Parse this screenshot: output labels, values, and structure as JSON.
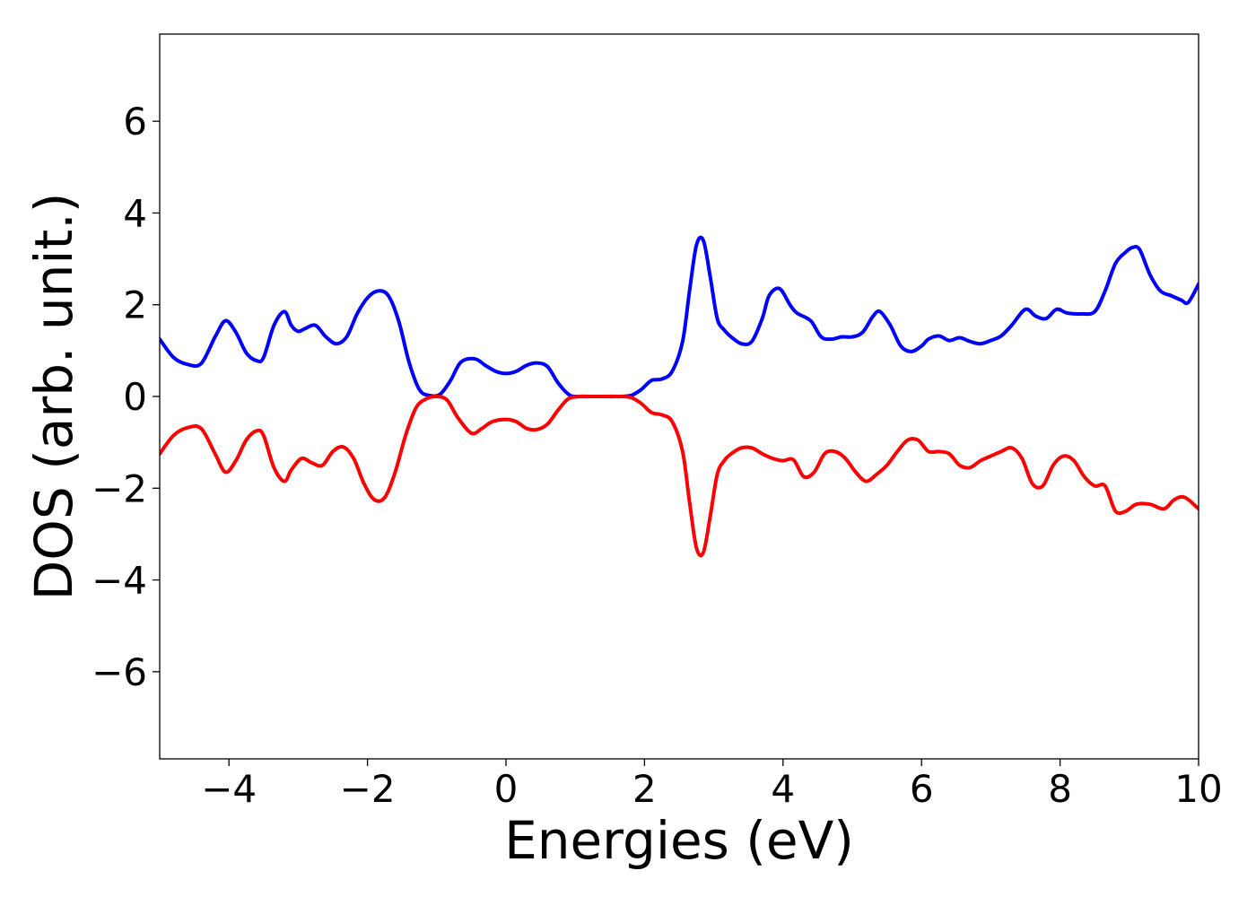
{
  "chart_data": {
    "type": "line",
    "xlabel": "Energies (eV)",
    "ylabel": "DOS (arb. unit.)",
    "xlim": [
      -5,
      10
    ],
    "ylim": [
      -7.9,
      7.9
    ],
    "xticks": [
      -4,
      -2,
      0,
      2,
      4,
      6,
      8,
      10
    ],
    "yticks": [
      -6,
      -4,
      -2,
      0,
      2,
      4,
      6
    ],
    "xtick_labels": [
      "−4",
      "−2",
      "0",
      "2",
      "4",
      "6",
      "8",
      "10"
    ],
    "ytick_labels": [
      "−6",
      "−4",
      "−2",
      "0",
      "2",
      "4",
      "6"
    ],
    "grid": false,
    "colors": {
      "up": "#0000ff",
      "down": "#ff0000",
      "axes": "#000000",
      "background": "#ffffff"
    },
    "series": [
      {
        "color": "#0000ff",
        "x": [
          -5.0,
          -4.8,
          -4.6,
          -4.4,
          -4.2,
          -4.05,
          -3.9,
          -3.75,
          -3.6,
          -3.5,
          -3.35,
          -3.2,
          -3.1,
          -3.0,
          -2.9,
          -2.75,
          -2.6,
          -2.45,
          -2.3,
          -2.15,
          -2.0,
          -1.85,
          -1.7,
          -1.55,
          -1.4,
          -1.25,
          -1.1,
          -0.95,
          -0.8,
          -0.65,
          -0.45,
          -0.3,
          -0.15,
          0.0,
          0.15,
          0.3,
          0.45,
          0.6,
          0.75,
          0.9,
          1.0,
          1.2,
          1.4,
          1.6,
          1.8,
          1.95,
          2.1,
          2.25,
          2.4,
          2.55,
          2.65,
          2.75,
          2.85,
          2.95,
          3.05,
          3.15,
          3.25,
          3.4,
          3.55,
          3.7,
          3.8,
          3.95,
          4.1,
          4.2,
          4.4,
          4.55,
          4.7,
          4.85,
          5.0,
          5.15,
          5.3,
          5.4,
          5.55,
          5.7,
          5.85,
          6.0,
          6.1,
          6.25,
          6.4,
          6.55,
          6.7,
          6.85,
          7.0,
          7.15,
          7.3,
          7.5,
          7.65,
          7.8,
          7.95,
          8.1,
          8.3,
          8.5,
          8.65,
          8.8,
          8.95,
          9.05,
          9.15,
          9.3,
          9.45,
          9.6,
          9.75,
          9.85,
          10.0
        ],
        "values": [
          1.25,
          0.85,
          0.7,
          0.72,
          1.3,
          1.65,
          1.4,
          0.95,
          0.78,
          0.85,
          1.55,
          1.85,
          1.55,
          1.42,
          1.48,
          1.55,
          1.3,
          1.15,
          1.3,
          1.8,
          2.15,
          2.3,
          2.2,
          1.65,
          0.75,
          0.15,
          0.02,
          0.05,
          0.35,
          0.75,
          0.82,
          0.68,
          0.55,
          0.5,
          0.55,
          0.68,
          0.73,
          0.65,
          0.3,
          0.05,
          0.0,
          0.0,
          0.0,
          0.0,
          0.02,
          0.15,
          0.35,
          0.38,
          0.55,
          1.2,
          2.3,
          3.3,
          3.4,
          2.6,
          1.7,
          1.45,
          1.3,
          1.15,
          1.2,
          1.7,
          2.2,
          2.35,
          2.0,
          1.82,
          1.65,
          1.3,
          1.25,
          1.3,
          1.3,
          1.4,
          1.75,
          1.85,
          1.55,
          1.1,
          0.98,
          1.1,
          1.25,
          1.32,
          1.22,
          1.28,
          1.2,
          1.15,
          1.22,
          1.32,
          1.55,
          1.9,
          1.75,
          1.7,
          1.9,
          1.82,
          1.8,
          1.85,
          2.3,
          2.9,
          3.15,
          3.25,
          3.2,
          2.65,
          2.3,
          2.2,
          2.1,
          2.05,
          2.45
        ]
      },
      {
        "color": "#ff0000",
        "x": [
          -5.0,
          -4.8,
          -4.6,
          -4.4,
          -4.2,
          -4.05,
          -3.9,
          -3.75,
          -3.6,
          -3.5,
          -3.35,
          -3.2,
          -3.1,
          -2.95,
          -2.8,
          -2.65,
          -2.5,
          -2.35,
          -2.2,
          -2.05,
          -1.9,
          -1.75,
          -1.6,
          -1.45,
          -1.3,
          -1.15,
          -1.0,
          -0.85,
          -0.7,
          -0.5,
          -0.35,
          -0.2,
          0.0,
          0.15,
          0.3,
          0.45,
          0.6,
          0.75,
          0.9,
          1.05,
          1.2,
          1.4,
          1.6,
          1.8,
          1.95,
          2.1,
          2.25,
          2.4,
          2.55,
          2.65,
          2.75,
          2.85,
          2.95,
          3.05,
          3.15,
          3.25,
          3.4,
          3.55,
          3.7,
          3.85,
          4.0,
          4.15,
          4.3,
          4.45,
          4.6,
          4.75,
          4.9,
          5.05,
          5.2,
          5.35,
          5.5,
          5.65,
          5.8,
          5.95,
          6.1,
          6.25,
          6.4,
          6.55,
          6.7,
          6.85,
          7.0,
          7.15,
          7.3,
          7.45,
          7.6,
          7.75,
          7.9,
          8.05,
          8.2,
          8.35,
          8.5,
          8.65,
          8.8,
          8.95,
          9.1,
          9.3,
          9.5,
          9.65,
          9.8,
          10.0
        ],
        "values": [
          -1.25,
          -0.85,
          -0.68,
          -0.7,
          -1.25,
          -1.65,
          -1.4,
          -0.95,
          -0.75,
          -0.85,
          -1.55,
          -1.85,
          -1.6,
          -1.35,
          -1.45,
          -1.5,
          -1.2,
          -1.1,
          -1.35,
          -1.9,
          -2.25,
          -2.2,
          -1.65,
          -0.85,
          -0.25,
          -0.05,
          -0.0,
          -0.08,
          -0.45,
          -0.8,
          -0.7,
          -0.55,
          -0.5,
          -0.55,
          -0.7,
          -0.72,
          -0.6,
          -0.3,
          -0.05,
          0.0,
          0.0,
          0.0,
          0.0,
          -0.02,
          -0.15,
          -0.35,
          -0.4,
          -0.55,
          -1.2,
          -2.3,
          -3.3,
          -3.4,
          -2.6,
          -1.7,
          -1.4,
          -1.25,
          -1.12,
          -1.12,
          -1.25,
          -1.35,
          -1.4,
          -1.38,
          -1.75,
          -1.65,
          -1.25,
          -1.2,
          -1.35,
          -1.65,
          -1.85,
          -1.7,
          -1.5,
          -1.2,
          -0.95,
          -0.95,
          -1.2,
          -1.2,
          -1.25,
          -1.5,
          -1.55,
          -1.4,
          -1.3,
          -1.2,
          -1.12,
          -1.35,
          -1.9,
          -1.95,
          -1.5,
          -1.3,
          -1.4,
          -1.75,
          -1.95,
          -1.95,
          -2.5,
          -2.5,
          -2.35,
          -2.35,
          -2.45,
          -2.25,
          -2.2,
          -2.45
        ]
      }
    ]
  }
}
